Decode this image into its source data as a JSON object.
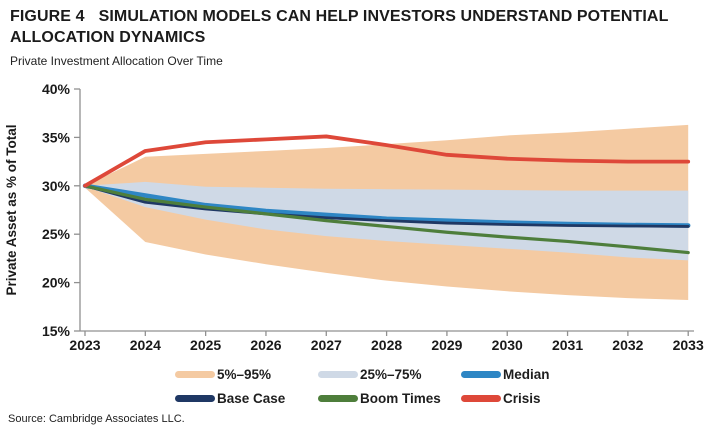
{
  "header": {
    "figure_label": "FIGURE 4",
    "title_line1": "SIMULATION MODELS CAN HELP INVESTORS UNDERSTAND POTENTIAL",
    "title_line2": "ALLOCATION DYNAMICS",
    "subtitle": "Private Investment Allocation Over Time"
  },
  "chart_data": {
    "type": "line",
    "title": "Private Investment Allocation Over Time",
    "xlabel": "",
    "ylabel": "Private Asset as % of Total",
    "ylim": [
      15,
      40
    ],
    "ytick_values": [
      40,
      35,
      30,
      25,
      20,
      15
    ],
    "ytick_labels": [
      "40%",
      "35%",
      "30%",
      "25%",
      "20%",
      "15%"
    ],
    "grid": false,
    "legend_position": "bottom",
    "years": [
      2023,
      2024,
      2025,
      2026,
      2027,
      2028,
      2029,
      2030,
      2031,
      2032,
      2033
    ],
    "x_tick_labels": [
      "2023",
      "2024",
      "2025",
      "2026",
      "2027",
      "2028",
      "2029",
      "2030",
      "2031",
      "2032",
      "2033"
    ],
    "bands": [
      {
        "id": "band-5-95",
        "name": "5%–95%",
        "color": "#F4CAA2",
        "upper": [
          30.0,
          33.0,
          33.3,
          33.6,
          33.9,
          34.3,
          34.7,
          35.2,
          35.5,
          35.9,
          36.3
        ],
        "lower": [
          29.8,
          24.2,
          22.9,
          21.9,
          21.0,
          20.2,
          19.6,
          19.1,
          18.7,
          18.4,
          18.2
        ]
      },
      {
        "id": "band-25-75",
        "name": "25%–75%",
        "color": "#CFD9E6",
        "upper": [
          30.0,
          30.4,
          29.9,
          29.8,
          29.7,
          29.65,
          29.6,
          29.55,
          29.5,
          29.5,
          29.5
        ],
        "lower": [
          29.9,
          27.8,
          26.5,
          25.5,
          24.8,
          24.3,
          23.9,
          23.5,
          23.1,
          22.6,
          22.3
        ]
      }
    ],
    "series": [
      {
        "id": "median",
        "name": "Median",
        "color": "#2E86C4",
        "width": 4.5,
        "values": [
          30.0,
          29.0,
          28.0,
          27.4,
          27.0,
          26.6,
          26.4,
          26.2,
          26.05,
          25.95,
          25.9
        ]
      },
      {
        "id": "base-case",
        "name": "Base Case",
        "color": "#1F3864",
        "width": 2.8,
        "values": [
          30.0,
          28.3,
          27.6,
          27.1,
          26.7,
          26.4,
          26.15,
          26.0,
          25.9,
          25.85,
          25.8
        ]
      },
      {
        "id": "boom-times",
        "name": "Boom Times",
        "color": "#4E7E3B",
        "width": 3.2,
        "values": [
          30.0,
          28.6,
          27.8,
          27.1,
          26.4,
          25.8,
          25.2,
          24.7,
          24.25,
          23.7,
          23.1
        ]
      },
      {
        "id": "crisis",
        "name": "Crisis",
        "color": "#DE4839",
        "width": 3.8,
        "values": [
          30.0,
          33.6,
          34.5,
          34.8,
          35.1,
          34.2,
          33.2,
          32.8,
          32.6,
          32.5,
          32.5
        ]
      }
    ]
  },
  "legend": {
    "items": [
      {
        "id": "band-5-95",
        "label": "5%–95%",
        "color": "#F4CAA2"
      },
      {
        "id": "band-25-75",
        "label": "25%–75%",
        "color": "#CFD9E6"
      },
      {
        "id": "median",
        "label": "Median",
        "color": "#2E86C4"
      },
      {
        "id": "base-case",
        "label": "Base Case",
        "color": "#1F3864"
      },
      {
        "id": "boom-times",
        "label": "Boom Times",
        "color": "#4E7E3B"
      },
      {
        "id": "crisis",
        "label": "Crisis",
        "color": "#DE4839"
      }
    ]
  },
  "footer": {
    "source": "Source: Cambridge Associates LLC."
  },
  "style": {
    "axis_color": "#909090",
    "text_color": "#1A1A1A"
  }
}
